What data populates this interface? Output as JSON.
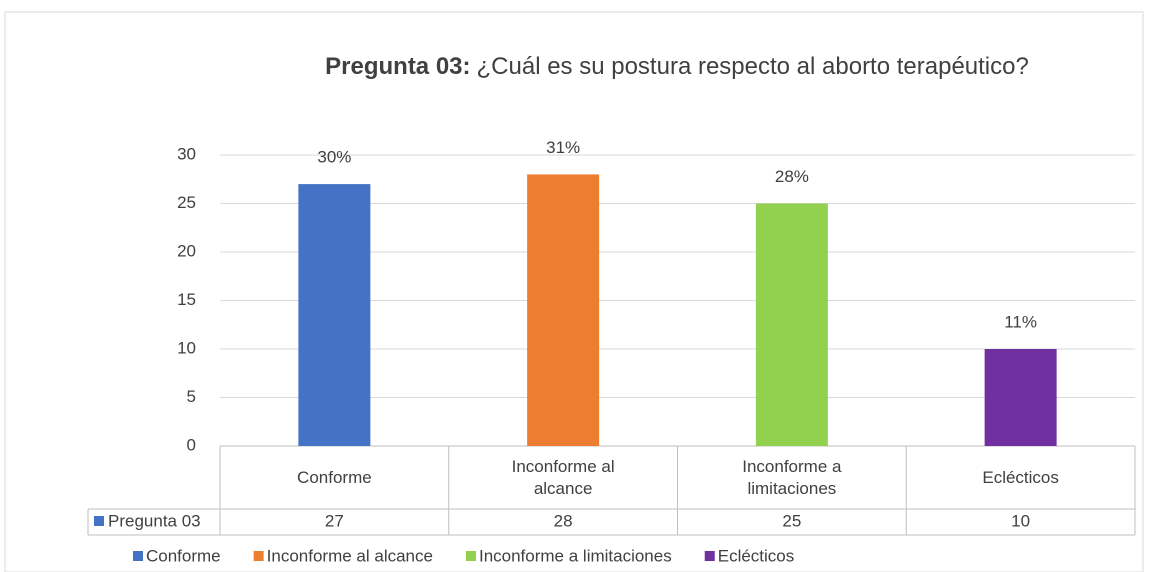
{
  "chart_data": {
    "type": "bar",
    "title_bold": "Pregunta 03:",
    "title": "¿Cuál es su postura respecto al aborto terapéutico?",
    "categories": [
      "Conforme",
      "Inconforme al alcance",
      "Inconforme a limitaciones",
      "Eclécticos"
    ],
    "colors": [
      "#4472c4",
      "#ed7d31",
      "#92d050",
      "#7030a0"
    ],
    "series": [
      {
        "name": "Pregunta 03",
        "color": "#4472c4",
        "values": [
          27,
          28,
          25,
          10
        ]
      }
    ],
    "percent_labels": [
      "30%",
      "31%",
      "28%",
      "11%"
    ],
    "ylim": [
      0,
      30
    ],
    "yticks": [
      0,
      5,
      10,
      15,
      20,
      25,
      30
    ],
    "grid": true,
    "legend": "bottom"
  }
}
